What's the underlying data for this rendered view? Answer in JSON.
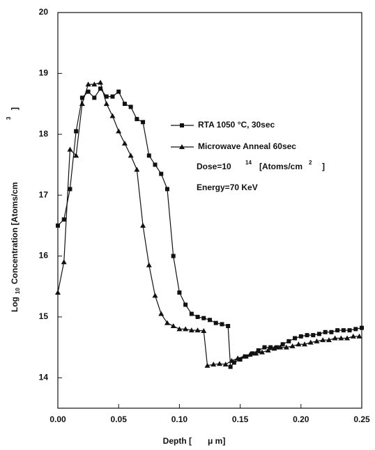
{
  "chart_data": {
    "type": "line",
    "x_label": {
      "text": "Depth [",
      "unit": "μ m]"
    },
    "y_label": {
      "text": "Log",
      "sub": "10",
      "rest": "Concentration [Atoms/cm",
      "sup": "3",
      "end": "]"
    },
    "annotations": {
      "dose": {
        "text": "Dose=10",
        "sup": "14",
        "unit": "[Atoms/cm",
        "unit_sup": "2",
        "end": "]"
      },
      "energy": "Energy=70 KeV"
    },
    "xlim": [
      0,
      0.25
    ],
    "ylim": [
      13.5,
      20
    ],
    "xticks": [
      {
        "value": 0,
        "label": "0.00"
      },
      0.05,
      {
        "value": 0.1,
        "label": "0.10"
      },
      0.15,
      {
        "value": 0.2,
        "label": "0.20"
      },
      0.25
    ],
    "yticks": [
      14,
      15,
      16,
      17,
      18,
      19,
      20
    ],
    "series": [
      {
        "name": "RTA 1050 °C, 30sec",
        "color": "#111111",
        "marker": "square",
        "x": [
          0,
          0.005,
          0.01,
          0.015,
          0.02,
          0.025,
          0.03,
          0.035,
          0.04,
          0.045,
          0.05,
          0.055,
          0.06,
          0.065,
          0.07,
          0.075,
          0.08,
          0.085,
          0.09,
          0.095,
          0.1,
          0.105,
          0.11,
          0.115,
          0.12,
          0.125,
          0.13,
          0.135,
          0.14,
          0.142,
          0.145,
          0.15,
          0.155,
          0.16,
          0.165,
          0.17,
          0.175,
          0.18,
          0.185,
          0.19,
          0.195,
          0.2,
          0.205,
          0.21,
          0.215,
          0.22,
          0.225,
          0.23,
          0.235,
          0.24,
          0.245,
          0.25
        ],
        "values": [
          16.5,
          16.6,
          17.1,
          18.05,
          18.6,
          18.7,
          18.6,
          18.75,
          18.62,
          18.62,
          18.7,
          18.5,
          18.45,
          18.25,
          18.2,
          17.65,
          17.5,
          17.35,
          17.1,
          16.0,
          15.4,
          15.2,
          15.05,
          15.0,
          14.98,
          14.95,
          14.9,
          14.88,
          14.85,
          14.18,
          14.25,
          14.3,
          14.35,
          14.4,
          14.45,
          14.5,
          14.5,
          14.5,
          14.55,
          14.6,
          14.65,
          14.68,
          14.7,
          14.7,
          14.72,
          14.75,
          14.75,
          14.78,
          14.78,
          14.78,
          14.8,
          14.82
        ]
      },
      {
        "name": "Microwave Anneal 60sec",
        "color": "#111111",
        "marker": "triangle",
        "x": [
          0,
          0.005,
          0.01,
          0.015,
          0.02,
          0.025,
          0.03,
          0.035,
          0.04,
          0.045,
          0.05,
          0.055,
          0.06,
          0.065,
          0.07,
          0.075,
          0.08,
          0.085,
          0.09,
          0.095,
          0.1,
          0.105,
          0.11,
          0.115,
          0.12,
          0.123,
          0.128,
          0.133,
          0.138,
          0.143,
          0.148,
          0.153,
          0.158,
          0.163,
          0.168,
          0.173,
          0.178,
          0.183,
          0.188,
          0.193,
          0.198,
          0.203,
          0.208,
          0.213,
          0.218,
          0.223,
          0.228,
          0.233,
          0.238,
          0.243,
          0.248
        ],
        "values": [
          15.4,
          15.9,
          17.75,
          17.65,
          18.5,
          18.82,
          18.82,
          18.85,
          18.5,
          18.3,
          18.05,
          17.85,
          17.65,
          17.42,
          16.5,
          15.85,
          15.35,
          15.05,
          14.9,
          14.85,
          14.8,
          14.8,
          14.78,
          14.78,
          14.77,
          14.2,
          14.22,
          14.23,
          14.22,
          14.28,
          14.32,
          14.35,
          14.38,
          14.4,
          14.42,
          14.45,
          14.48,
          14.5,
          14.5,
          14.52,
          14.55,
          14.55,
          14.58,
          14.6,
          14.62,
          14.62,
          14.65,
          14.65,
          14.65,
          14.68,
          14.68
        ]
      }
    ]
  }
}
